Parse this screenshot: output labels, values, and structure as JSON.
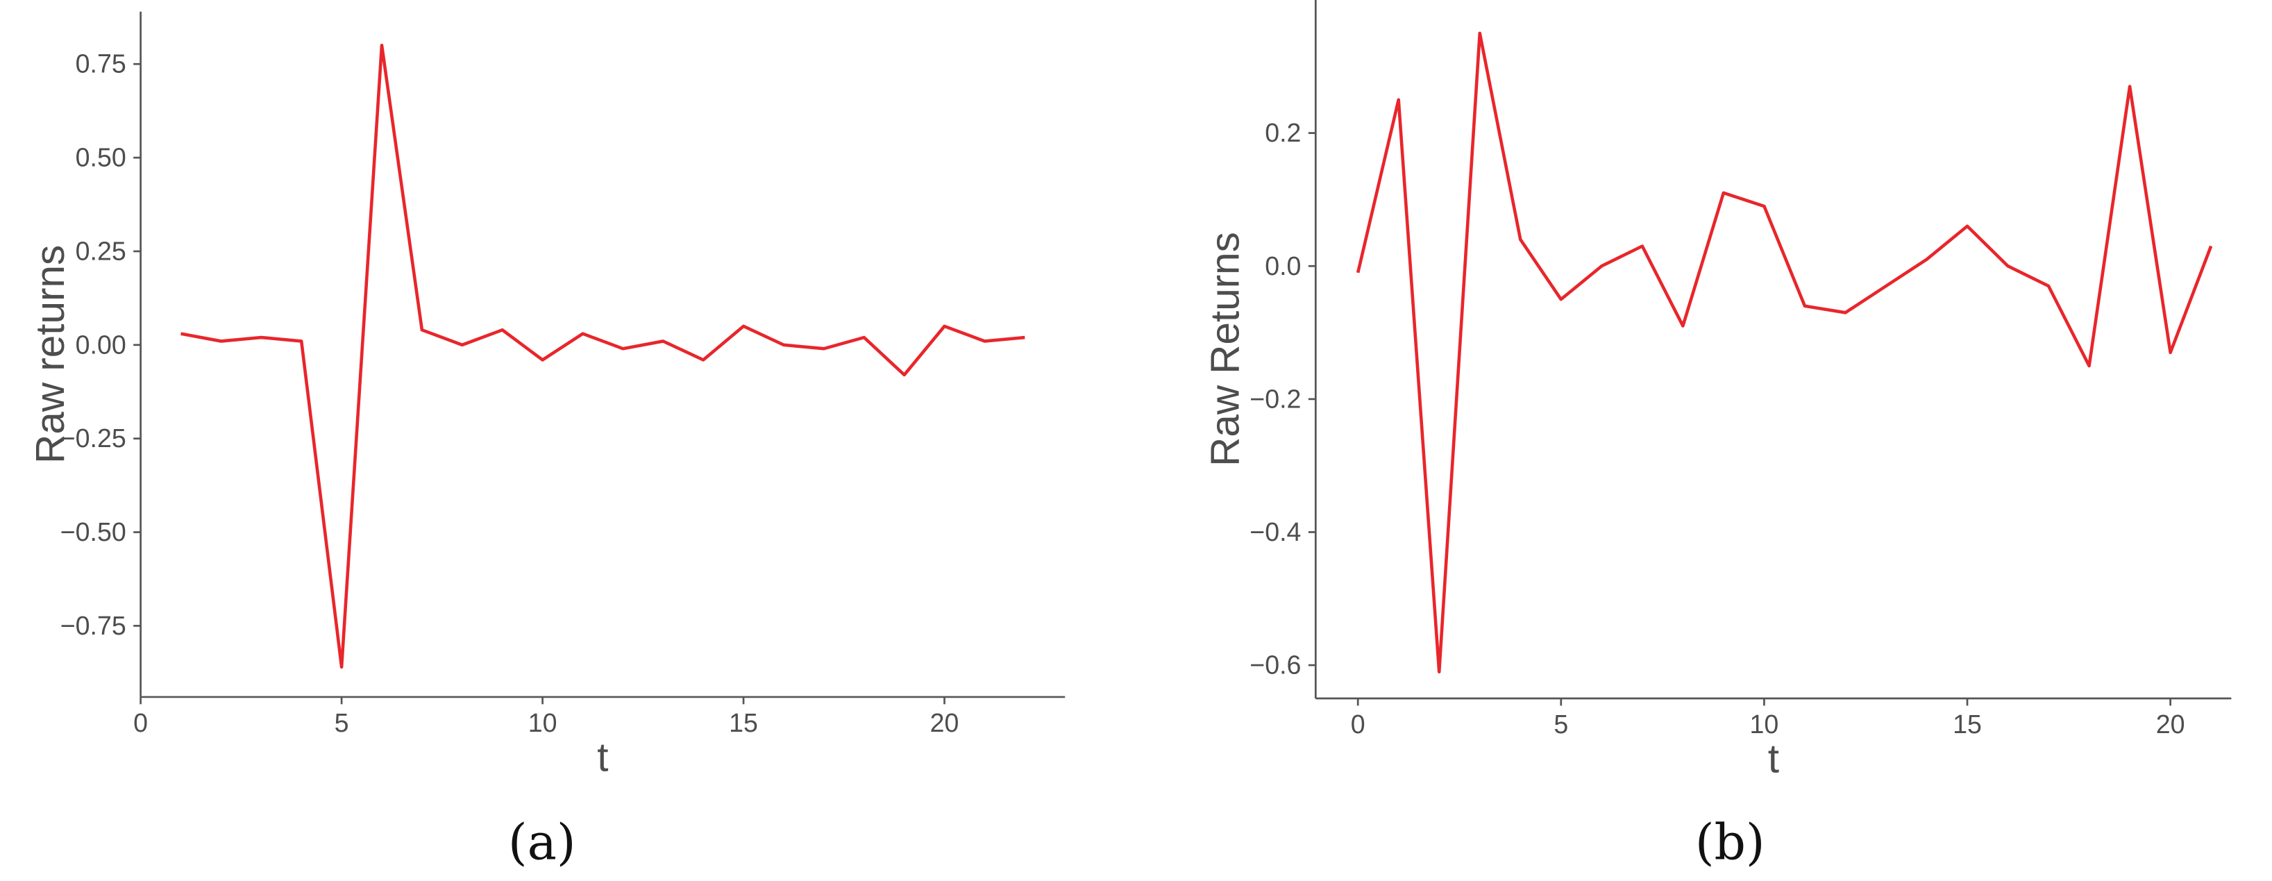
{
  "chart_data": [
    {
      "type": "line",
      "caption": "(a)",
      "xlabel": "t",
      "ylabel": "Raw returns",
      "color": "#e8262b",
      "x": [
        1,
        2,
        3,
        4,
        5,
        6,
        7,
        8,
        9,
        10,
        11,
        12,
        13,
        14,
        15,
        16,
        17,
        18,
        19,
        20,
        21,
        22
      ],
      "values": [
        0.03,
        0.01,
        0.02,
        0.01,
        -0.86,
        0.8,
        0.04,
        0.0,
        0.04,
        -0.04,
        0.03,
        -0.01,
        0.01,
        -0.04,
        0.05,
        0.0,
        -0.01,
        0.02,
        -0.08,
        0.05,
        0.01,
        0.02
      ],
      "xlim": [
        0,
        23
      ],
      "ylim": [
        -0.94,
        0.89
      ],
      "xticks": [
        0,
        5,
        10,
        15,
        20
      ],
      "yticks": [
        {
          "value": -0.75,
          "label": "−0.75"
        },
        {
          "value": -0.5,
          "label": "−0.50"
        },
        {
          "value": -0.25,
          "label": "−0.25"
        },
        {
          "value": 0,
          "label": "0.00"
        },
        0.25,
        {
          "value": 0.5,
          "label": "0.50"
        },
        0.75
      ]
    },
    {
      "type": "line",
      "caption": "(b)",
      "xlabel": "t",
      "ylabel": "Raw Returns",
      "color": "#e8262b",
      "x": [
        0,
        1,
        2,
        3,
        4,
        5,
        6,
        7,
        8,
        9,
        10,
        11,
        12,
        13,
        14,
        15,
        16,
        17,
        18,
        19,
        20,
        21
      ],
      "values": [
        -0.01,
        0.25,
        -0.61,
        0.35,
        0.04,
        -0.05,
        0.0,
        0.03,
        -0.09,
        0.11,
        0.09,
        -0.06,
        -0.07,
        -0.03,
        0.01,
        0.06,
        0.0,
        -0.03,
        -0.15,
        0.27,
        -0.13,
        0.03
      ],
      "xlim": [
        -1.04,
        21.5
      ],
      "ylim": [
        -0.65,
        0.4
      ],
      "xticks": [
        0,
        5,
        10,
        15,
        20
      ],
      "yticks": [
        {
          "value": -0.6,
          "label": "−0.6"
        },
        {
          "value": -0.4,
          "label": "−0.4"
        },
        {
          "value": -0.2,
          "label": "−0.2"
        },
        {
          "value": 0,
          "label": "0.0"
        },
        0.2
      ]
    }
  ]
}
